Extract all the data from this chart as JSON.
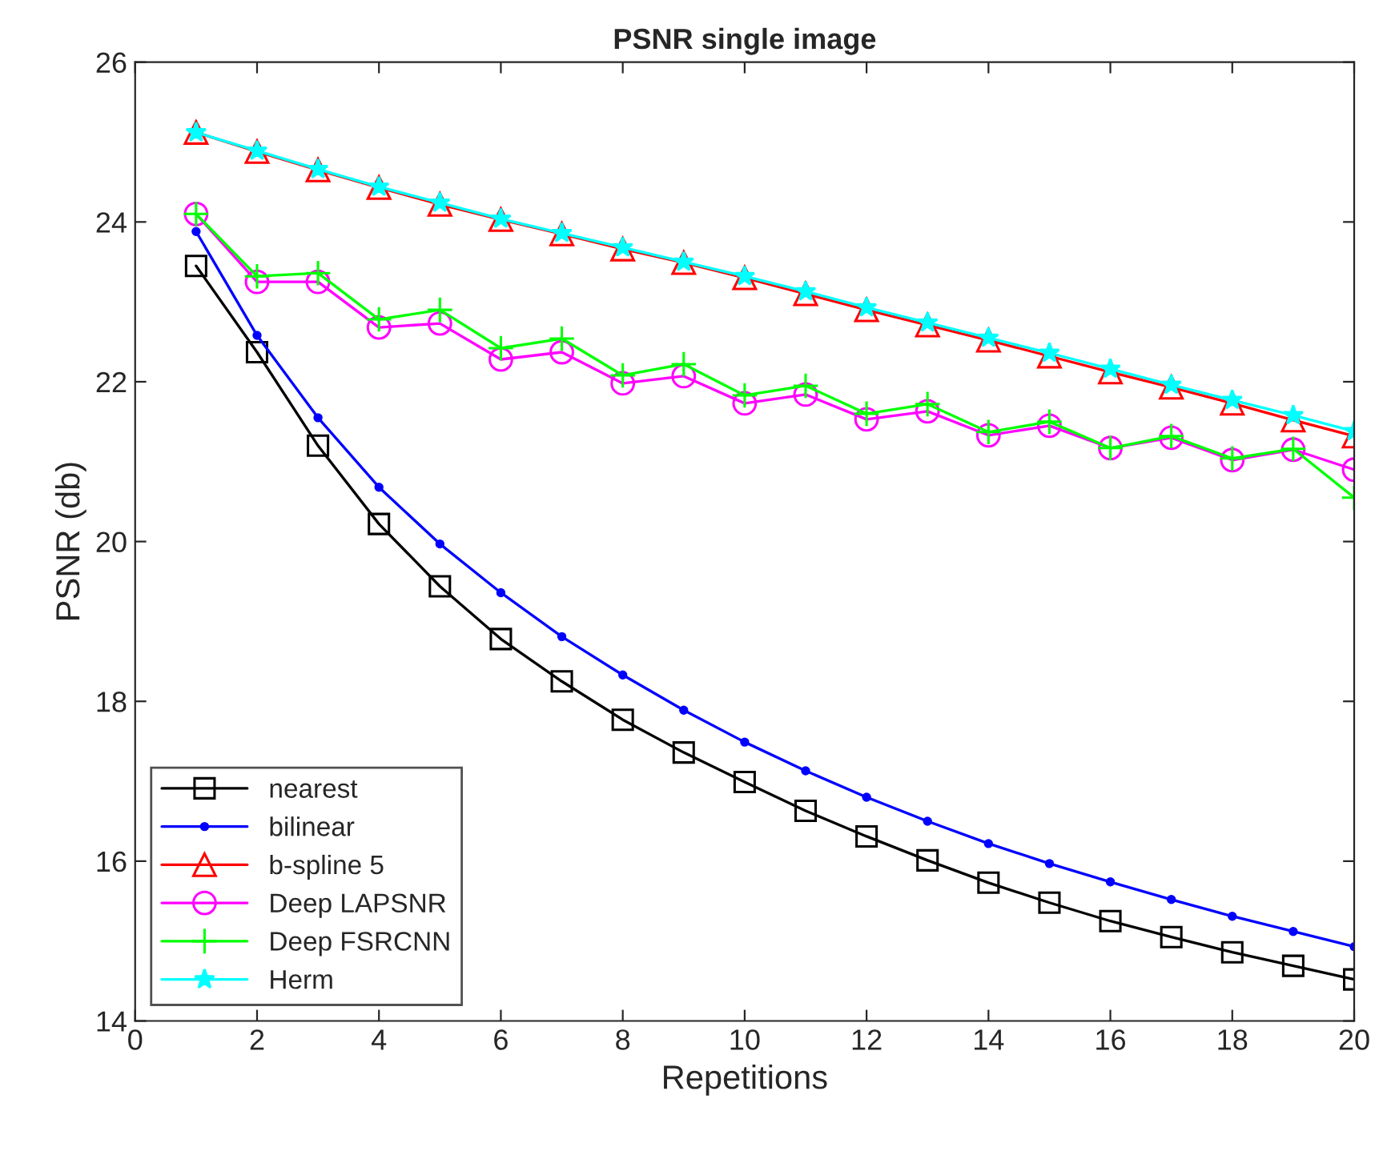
{
  "chart_data": {
    "type": "line",
    "title": "PSNR single image",
    "xlabel": "Repetitions",
    "ylabel": "PSNR (db)",
    "x": [
      1,
      2,
      3,
      4,
      5,
      6,
      7,
      8,
      9,
      10,
      11,
      12,
      13,
      14,
      15,
      16,
      17,
      18,
      19,
      20
    ],
    "xlim": [
      0,
      20
    ],
    "xticks": [
      0,
      2,
      4,
      6,
      8,
      10,
      12,
      14,
      16,
      18,
      20
    ],
    "ylim": [
      14,
      26
    ],
    "yticks": [
      14,
      16,
      18,
      20,
      22,
      24,
      26
    ],
    "grid": false,
    "legend": "bottom left",
    "series": [
      {
        "name": "nearest",
        "color": "#000000",
        "marker": "square",
        "values": [
          23.45,
          22.37,
          21.2,
          20.22,
          19.44,
          18.78,
          18.25,
          17.77,
          17.36,
          16.99,
          16.63,
          16.31,
          16.01,
          15.73,
          15.48,
          15.25,
          15.05,
          14.86,
          14.69,
          14.52
        ]
      },
      {
        "name": "bilinear",
        "color": "#0000ff",
        "marker": "circle_dot",
        "values": [
          23.88,
          22.58,
          21.55,
          20.68,
          19.97,
          19.36,
          18.81,
          18.33,
          17.89,
          17.49,
          17.13,
          16.8,
          16.5,
          16.22,
          15.97,
          15.74,
          15.52,
          15.31,
          15.12,
          14.93
        ]
      },
      {
        "name": "b-spline 5",
        "color": "#ff0000",
        "marker": "triangle",
        "values": [
          25.12,
          24.88,
          24.65,
          24.43,
          24.22,
          24.03,
          23.85,
          23.66,
          23.49,
          23.3,
          23.1,
          22.9,
          22.71,
          22.52,
          22.32,
          22.12,
          21.93,
          21.73,
          21.52,
          21.32
        ]
      },
      {
        "name": "Deep LAPSNR",
        "color": "#ff00ff",
        "marker": "circle",
        "values": [
          24.1,
          23.25,
          23.25,
          22.68,
          22.73,
          22.28,
          22.37,
          21.98,
          22.07,
          21.73,
          21.84,
          21.53,
          21.63,
          21.33,
          21.45,
          21.17,
          21.3,
          21.02,
          21.15,
          20.9
        ]
      },
      {
        "name": "Deep FSRCNN",
        "color": "#00ff00",
        "marker": "plus",
        "values": [
          24.1,
          23.32,
          23.36,
          22.78,
          22.9,
          22.42,
          22.54,
          22.08,
          22.22,
          21.83,
          21.95,
          21.6,
          21.72,
          21.37,
          21.5,
          21.17,
          21.32,
          21.04,
          21.16,
          20.55
        ]
      },
      {
        "name": "Herm",
        "color": "#00ffff",
        "marker": "star",
        "values": [
          25.12,
          24.89,
          24.66,
          24.44,
          24.24,
          24.04,
          23.86,
          23.68,
          23.5,
          23.32,
          23.13,
          22.93,
          22.74,
          22.55,
          22.36,
          22.16,
          21.96,
          21.77,
          21.58,
          21.38
        ]
      }
    ]
  }
}
